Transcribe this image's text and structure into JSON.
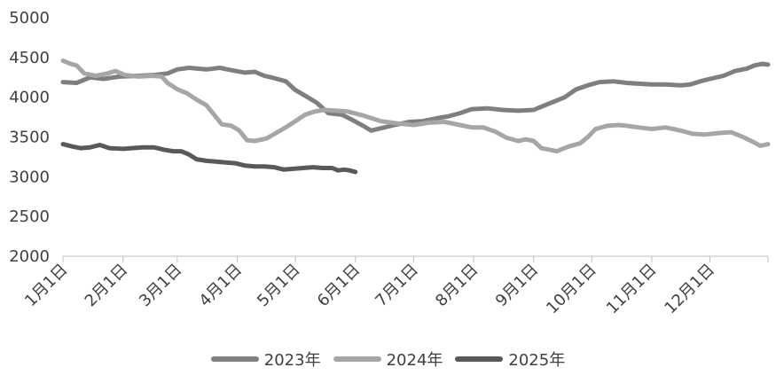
{
  "chart_data": {
    "type": "line",
    "title": "",
    "xlabel": "",
    "ylabel": "",
    "ylim": [
      2000,
      5000
    ],
    "yticks": [
      2000,
      2500,
      3000,
      3500,
      4000,
      4500,
      5000
    ],
    "xlim": [
      1,
      365
    ],
    "xticks": [
      {
        "label": "1月1日",
        "day": 1
      },
      {
        "label": "2月1日",
        "day": 32
      },
      {
        "label": "3月1日",
        "day": 60
      },
      {
        "label": "4月1日",
        "day": 91
      },
      {
        "label": "5月1日",
        "day": 121
      },
      {
        "label": "6月1日",
        "day": 152
      },
      {
        "label": "7月1日",
        "day": 182
      },
      {
        "label": "8月1日",
        "day": 213
      },
      {
        "label": "9月1日",
        "day": 244
      },
      {
        "label": "10月1日",
        "day": 274
      },
      {
        "label": "11月1日",
        "day": 305
      },
      {
        "label": "12月1日",
        "day": 335
      }
    ],
    "grid": false,
    "legend_position": "bottom",
    "series": [
      {
        "name": "2023年",
        "color": "#7f7f7f",
        "points": [
          [
            1,
            4190
          ],
          [
            8,
            4180
          ],
          [
            15,
            4250
          ],
          [
            22,
            4230
          ],
          [
            30,
            4260
          ],
          [
            40,
            4270
          ],
          [
            48,
            4280
          ],
          [
            55,
            4300
          ],
          [
            60,
            4350
          ],
          [
            66,
            4370
          ],
          [
            75,
            4350
          ],
          [
            82,
            4370
          ],
          [
            88,
            4340
          ],
          [
            95,
            4310
          ],
          [
            100,
            4320
          ],
          [
            105,
            4270
          ],
          [
            110,
            4240
          ],
          [
            116,
            4200
          ],
          [
            121,
            4090
          ],
          [
            126,
            4020
          ],
          [
            132,
            3930
          ],
          [
            138,
            3800
          ],
          [
            145,
            3780
          ],
          [
            150,
            3720
          ],
          [
            156,
            3640
          ],
          [
            160,
            3580
          ],
          [
            167,
            3620
          ],
          [
            172,
            3650
          ],
          [
            180,
            3690
          ],
          [
            187,
            3700
          ],
          [
            195,
            3740
          ],
          [
            200,
            3760
          ],
          [
            206,
            3800
          ],
          [
            212,
            3850
          ],
          [
            220,
            3860
          ],
          [
            228,
            3840
          ],
          [
            236,
            3830
          ],
          [
            244,
            3840
          ],
          [
            250,
            3900
          ],
          [
            256,
            3960
          ],
          [
            260,
            4000
          ],
          [
            266,
            4100
          ],
          [
            272,
            4150
          ],
          [
            278,
            4190
          ],
          [
            285,
            4200
          ],
          [
            292,
            4180
          ],
          [
            298,
            4170
          ],
          [
            305,
            4160
          ],
          [
            312,
            4160
          ],
          [
            320,
            4150
          ],
          [
            325,
            4160
          ],
          [
            330,
            4200
          ],
          [
            335,
            4230
          ],
          [
            342,
            4270
          ],
          [
            348,
            4330
          ],
          [
            354,
            4360
          ],
          [
            358,
            4400
          ],
          [
            362,
            4420
          ],
          [
            365,
            4410
          ]
        ]
      },
      {
        "name": "2024年",
        "color": "#a6a6a6",
        "points": [
          [
            1,
            4460
          ],
          [
            5,
            4420
          ],
          [
            8,
            4400
          ],
          [
            12,
            4300
          ],
          [
            18,
            4270
          ],
          [
            24,
            4300
          ],
          [
            28,
            4330
          ],
          [
            33,
            4280
          ],
          [
            40,
            4260
          ],
          [
            47,
            4270
          ],
          [
            52,
            4260
          ],
          [
            55,
            4180
          ],
          [
            60,
            4100
          ],
          [
            65,
            4050
          ],
          [
            70,
            3970
          ],
          [
            75,
            3900
          ],
          [
            79,
            3780
          ],
          [
            83,
            3660
          ],
          [
            88,
            3640
          ],
          [
            92,
            3580
          ],
          [
            96,
            3460
          ],
          [
            100,
            3450
          ],
          [
            106,
            3480
          ],
          [
            111,
            3550
          ],
          [
            116,
            3620
          ],
          [
            121,
            3700
          ],
          [
            126,
            3780
          ],
          [
            131,
            3820
          ],
          [
            136,
            3840
          ],
          [
            142,
            3830
          ],
          [
            148,
            3820
          ],
          [
            156,
            3770
          ],
          [
            165,
            3700
          ],
          [
            174,
            3670
          ],
          [
            182,
            3650
          ],
          [
            190,
            3680
          ],
          [
            198,
            3690
          ],
          [
            206,
            3650
          ],
          [
            212,
            3620
          ],
          [
            218,
            3620
          ],
          [
            224,
            3570
          ],
          [
            230,
            3490
          ],
          [
            236,
            3450
          ],
          [
            240,
            3470
          ],
          [
            244,
            3450
          ],
          [
            248,
            3360
          ],
          [
            252,
            3340
          ],
          [
            256,
            3320
          ],
          [
            262,
            3380
          ],
          [
            268,
            3420
          ],
          [
            272,
            3500
          ],
          [
            276,
            3600
          ],
          [
            282,
            3640
          ],
          [
            288,
            3650
          ],
          [
            292,
            3640
          ],
          [
            298,
            3620
          ],
          [
            305,
            3600
          ],
          [
            312,
            3620
          ],
          [
            320,
            3580
          ],
          [
            326,
            3540
          ],
          [
            332,
            3530
          ],
          [
            340,
            3550
          ],
          [
            346,
            3560
          ],
          [
            352,
            3500
          ],
          [
            358,
            3430
          ],
          [
            361,
            3390
          ],
          [
            365,
            3410
          ]
        ]
      },
      {
        "name": "2025年",
        "color": "#595959",
        "points": [
          [
            1,
            3410
          ],
          [
            6,
            3380
          ],
          [
            10,
            3360
          ],
          [
            15,
            3370
          ],
          [
            20,
            3400
          ],
          [
            25,
            3360
          ],
          [
            32,
            3350
          ],
          [
            42,
            3370
          ],
          [
            48,
            3370
          ],
          [
            53,
            3340
          ],
          [
            58,
            3320
          ],
          [
            62,
            3320
          ],
          [
            66,
            3280
          ],
          [
            70,
            3220
          ],
          [
            75,
            3200
          ],
          [
            80,
            3190
          ],
          [
            85,
            3180
          ],
          [
            90,
            3170
          ],
          [
            95,
            3140
          ],
          [
            100,
            3130
          ],
          [
            105,
            3130
          ],
          [
            110,
            3120
          ],
          [
            115,
            3090
          ],
          [
            120,
            3100
          ],
          [
            125,
            3110
          ],
          [
            130,
            3120
          ],
          [
            135,
            3110
          ],
          [
            140,
            3110
          ],
          [
            143,
            3080
          ],
          [
            146,
            3090
          ],
          [
            149,
            3080
          ],
          [
            152,
            3060
          ]
        ]
      }
    ]
  }
}
